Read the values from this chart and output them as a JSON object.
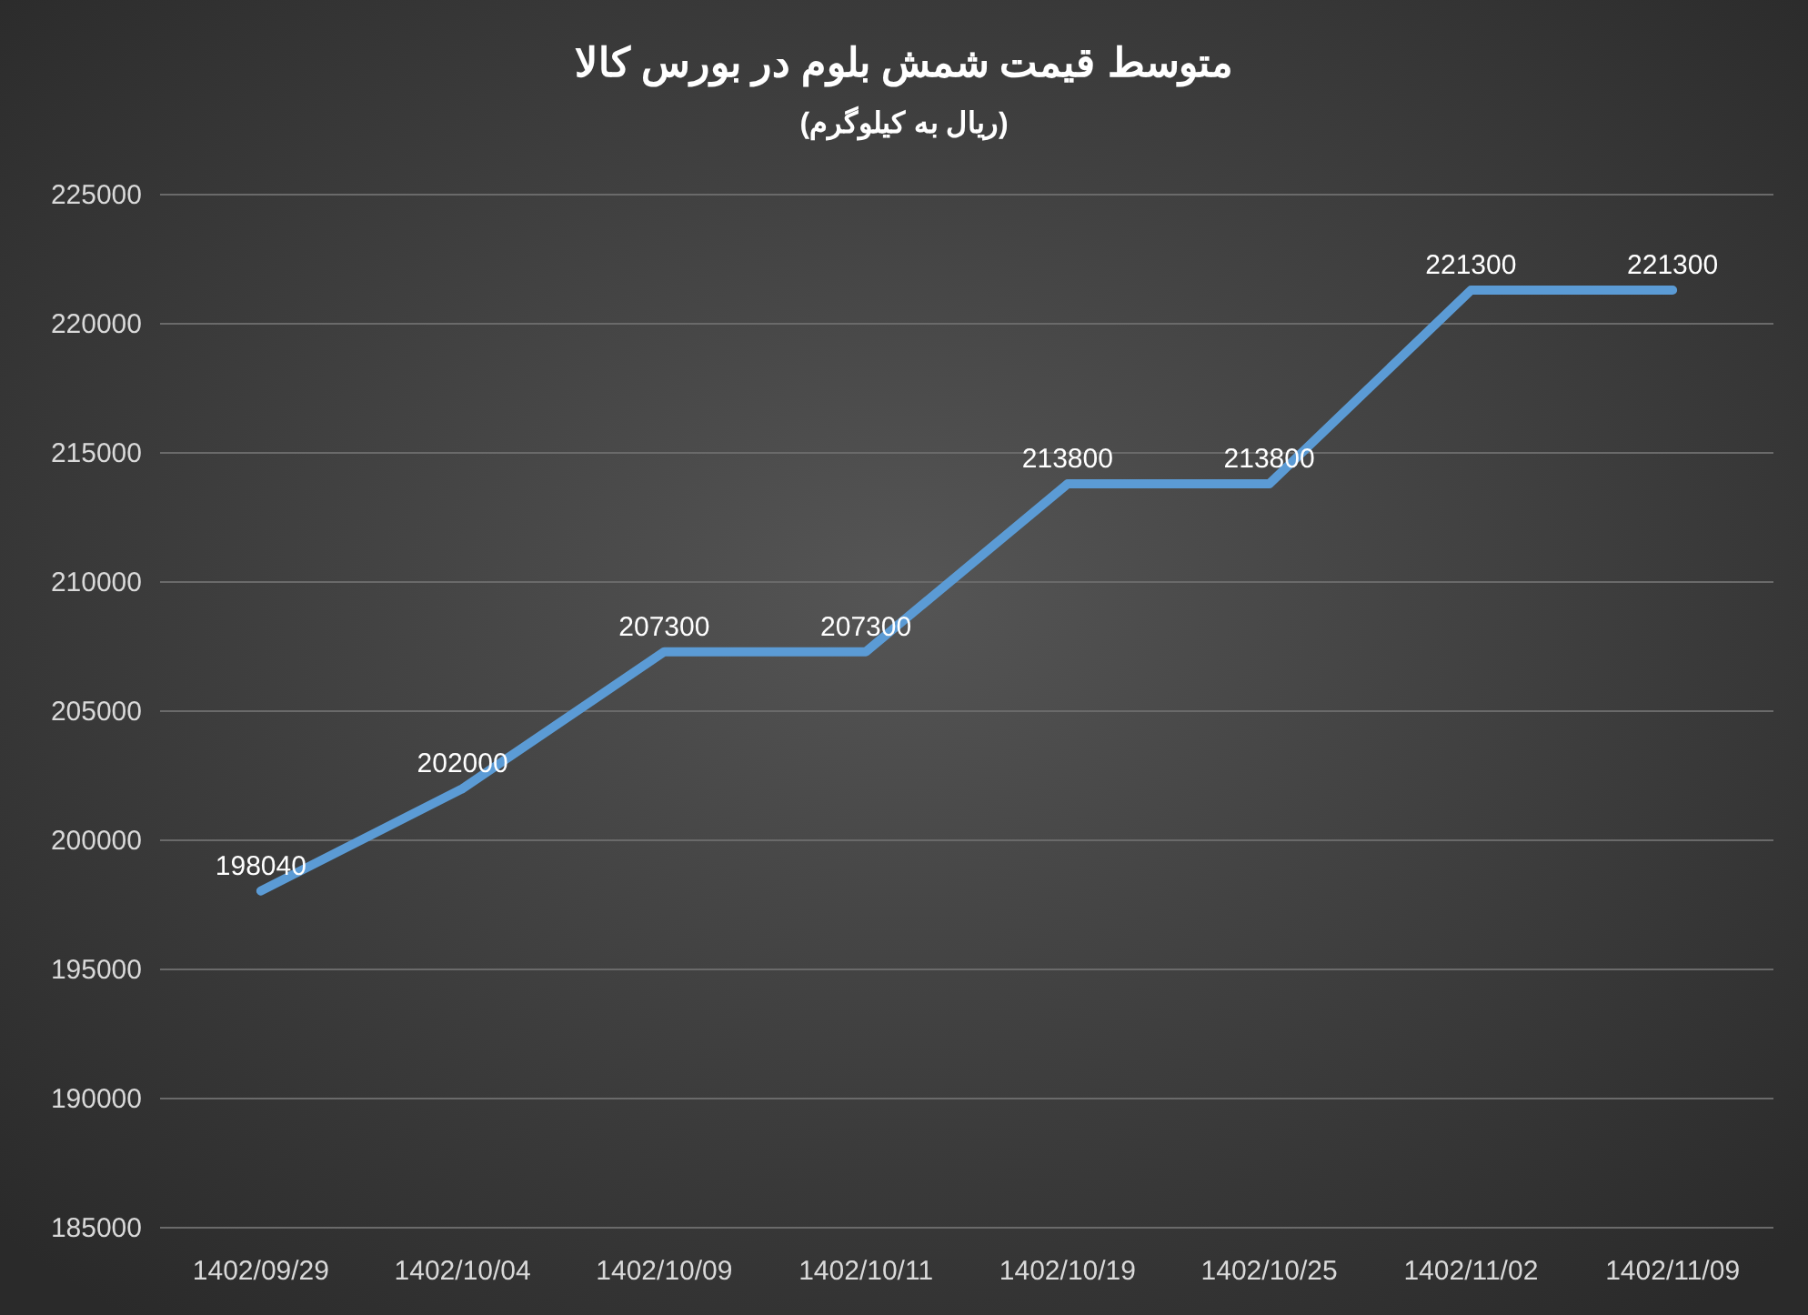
{
  "chart_data": {
    "type": "line",
    "title": "متوسط قیمت شمش بلوم در بورس کالا",
    "subtitle": "(ریال به کیلوگرم)",
    "categories": [
      "1402/09/29",
      "1402/10/04",
      "1402/10/09",
      "1402/10/11",
      "1402/10/19",
      "1402/10/25",
      "1402/11/02",
      "1402/11/09"
    ],
    "series": [
      {
        "color": "#5b9bd5",
        "values": [
          198040,
          202000,
          207300,
          207300,
          213800,
          213800,
          221300,
          221300
        ]
      }
    ],
    "ylim": [
      185000,
      225000
    ],
    "yticks": [
      185000,
      190000,
      195000,
      200000,
      205000,
      210000,
      215000,
      220000,
      225000
    ],
    "grid": "y",
    "data_labels": true,
    "marker": "none",
    "line_style": "solid"
  }
}
